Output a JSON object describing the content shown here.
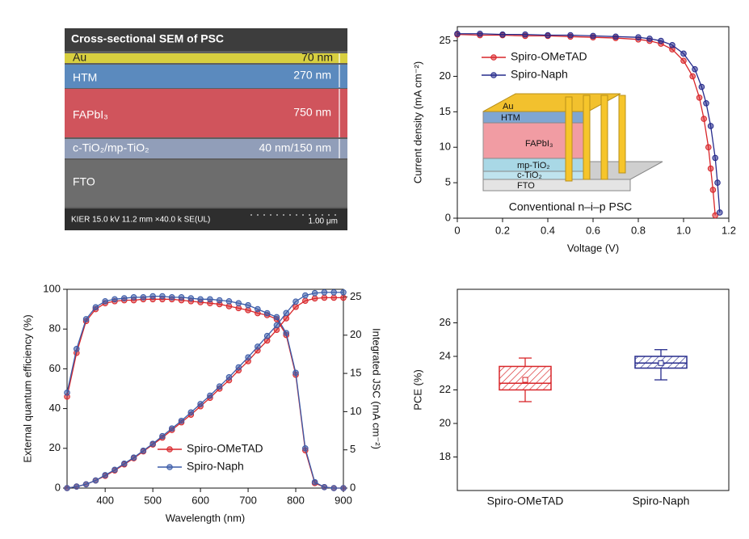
{
  "sem_image": {
    "title": "Cross-sectional SEM of PSC",
    "layers": [
      {
        "name": "Au",
        "thickness": "70 nm"
      },
      {
        "name": "HTM",
        "thickness": "270 nm"
      },
      {
        "name": "FAPbI₃",
        "thickness": "750 nm"
      },
      {
        "name": "c-TiO₂/mp-TiO₂",
        "thickness": "40 nm/150 nm"
      },
      {
        "name": "FTO"
      }
    ],
    "footer": "KIER 15.0 kV 11.2 mm ×40.0 k SE(UL)",
    "scale_bar": "1.00 μm"
  },
  "chart_data": [
    {
      "type": "line",
      "xlabel": "Voltage (V)",
      "ylabel": "Current density (mA cm⁻²)",
      "xlim": [
        0,
        1.2
      ],
      "xticks": [
        0,
        0.2,
        0.4,
        0.6,
        0.8,
        {
          "value": 1,
          "label": "1.0"
        },
        1.2
      ],
      "ylim": [
        0,
        27
      ],
      "yticks": [
        0,
        5,
        10,
        15,
        20,
        25
      ],
      "legend": "upper left",
      "series": [
        {
          "name": "Spiro-OMeTAD",
          "color": "#d8262a",
          "x": [
            0,
            0.1,
            0.2,
            0.3,
            0.4,
            0.5,
            0.6,
            0.7,
            0.8,
            0.85,
            0.9,
            0.95,
            1.0,
            1.04,
            1.07,
            1.09,
            1.11,
            1.12,
            1.13,
            1.14
          ],
          "values": [
            25.9,
            25.8,
            25.8,
            25.7,
            25.7,
            25.6,
            25.5,
            25.4,
            25.2,
            25.0,
            24.6,
            23.8,
            22.2,
            20.0,
            17.0,
            14.0,
            10.0,
            7.0,
            4.0,
            0.4
          ]
        },
        {
          "name": "Spiro-Naph",
          "color": "#262b8c",
          "x": [
            0,
            0.1,
            0.2,
            0.3,
            0.4,
            0.5,
            0.6,
            0.7,
            0.8,
            0.85,
            0.9,
            0.95,
            1.0,
            1.05,
            1.08,
            1.1,
            1.12,
            1.14,
            1.15,
            1.16
          ],
          "values": [
            26.0,
            26.0,
            25.9,
            25.9,
            25.8,
            25.8,
            25.7,
            25.6,
            25.5,
            25.3,
            25.0,
            24.4,
            23.2,
            21.0,
            18.5,
            16.2,
            13.0,
            8.5,
            5.0,
            0.8
          ]
        }
      ],
      "inset": {
        "labels": [
          "Au",
          "HTM",
          "FAPbI₃",
          "mp-TiO₂",
          "c-TiO₂",
          "FTO"
        ],
        "caption": "Conventional n–i–p PSC"
      }
    },
    {
      "type": "line",
      "xlabel": "Wavelength (nm)",
      "ylabel": "External quantum efficiency (%)",
      "y2label": "Integrated JSC (mA cm⁻²)",
      "xlim": [
        320,
        900
      ],
      "xticks": [
        400,
        500,
        600,
        700,
        800,
        900
      ],
      "ylim": [
        0,
        100
      ],
      "yticks": [
        0,
        20,
        40,
        60,
        80,
        100
      ],
      "y2lim": [
        0,
        26
      ],
      "y2ticks": [
        0,
        5,
        10,
        15,
        20,
        25
      ],
      "legend": "lower center",
      "x": [
        320,
        340,
        360,
        380,
        400,
        420,
        440,
        460,
        480,
        500,
        520,
        540,
        560,
        580,
        600,
        620,
        640,
        660,
        680,
        700,
        720,
        740,
        760,
        780,
        800,
        820,
        840,
        860,
        880,
        900
      ],
      "series": [
        {
          "name": "Spiro-OMeTAD",
          "color": "#d8262a",
          "values": [
            46,
            68,
            84,
            90,
            93,
            94,
            94.5,
            94.5,
            95,
            95,
            95,
            95,
            94.5,
            94,
            93.5,
            93,
            92.5,
            91.5,
            90.5,
            89.5,
            88,
            87,
            85,
            77,
            57,
            19,
            2.5,
            0.5,
            0,
            0
          ]
        },
        {
          "name": "Spiro-Naph",
          "color": "#3b5ba8",
          "values": [
            48,
            70,
            85,
            91,
            94,
            95,
            95.5,
            96,
            96,
            96.5,
            96.5,
            96,
            96,
            95.5,
            95,
            95,
            94.5,
            94,
            93,
            92,
            90,
            88,
            86,
            78,
            58,
            20,
            3,
            0.5,
            0,
            0
          ]
        },
        {
          "color": "#d8262a",
          "axis": "y2",
          "values": [
            0,
            0.2,
            0.5,
            1.0,
            1.6,
            2.3,
            3.1,
            3.9,
            4.8,
            5.7,
            6.6,
            7.6,
            8.6,
            9.6,
            10.7,
            11.8,
            13.0,
            14.1,
            15.4,
            16.6,
            18.0,
            19.3,
            20.7,
            22.2,
            23.7,
            24.5,
            24.8,
            24.9,
            24.9,
            24.9
          ]
        },
        {
          "color": "#3b5ba8",
          "axis": "y2",
          "values": [
            0,
            0.2,
            0.5,
            1.0,
            1.7,
            2.4,
            3.2,
            4.0,
            4.9,
            5.8,
            6.8,
            7.8,
            8.8,
            9.9,
            11.0,
            12.1,
            13.3,
            14.5,
            15.8,
            17.1,
            18.5,
            19.9,
            21.3,
            22.9,
            24.4,
            25.2,
            25.5,
            25.6,
            25.6,
            25.6
          ]
        }
      ]
    },
    {
      "type": "box",
      "ylabel": "PCE (%)",
      "ylim": [
        16,
        28
      ],
      "yticks": [
        18,
        20,
        22,
        24,
        26
      ],
      "categories": [
        "Spiro-OMeTAD",
        "Spiro-Naph"
      ],
      "colors": [
        "#d8262a",
        "#262b8c"
      ],
      "boxes": [
        {
          "min": 21.3,
          "q1": 22.0,
          "median": 22.4,
          "q3": 23.4,
          "max": 23.9,
          "mean": 22.6
        },
        {
          "min": 22.6,
          "q1": 23.3,
          "median": 23.6,
          "q3": 24.0,
          "max": 24.4,
          "mean": 23.6
        }
      ]
    }
  ]
}
